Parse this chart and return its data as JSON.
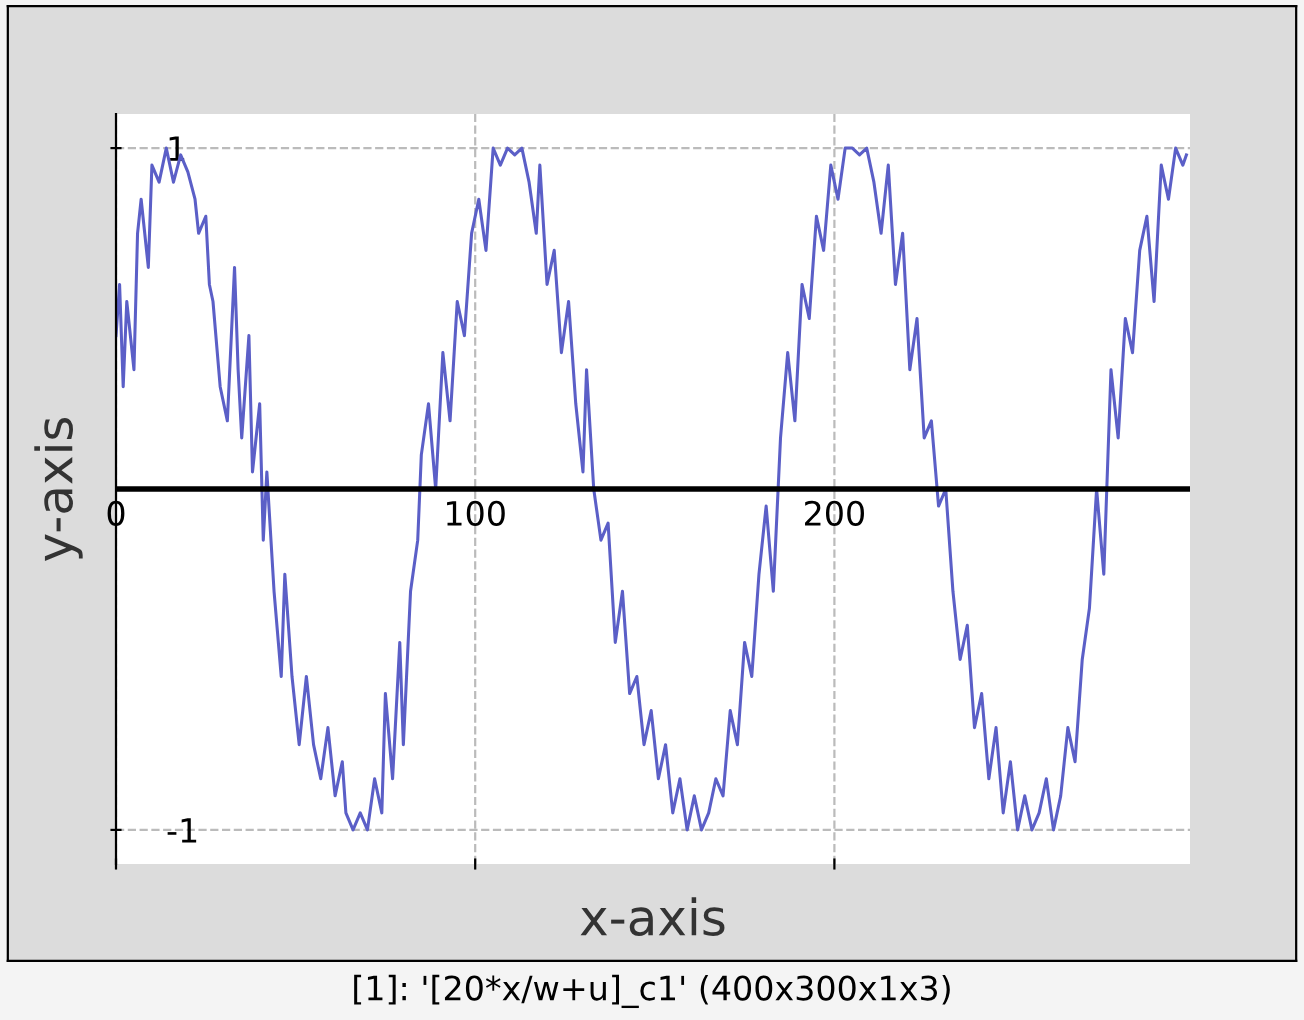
{
  "chart_data": {
    "type": "line",
    "xlabel": "x-axis",
    "ylabel": "y-axis",
    "annotations": [
      "[1]: '[20*x/w+u]_c1' (400x300x1x3)"
    ],
    "x": [
      0,
      1,
      2,
      3,
      5,
      6,
      7,
      9,
      10,
      12,
      14,
      16,
      18,
      20,
      22,
      23,
      25,
      26,
      27,
      29,
      31,
      33,
      34,
      35,
      37,
      38,
      40,
      41,
      42,
      44,
      46,
      47,
      49,
      51,
      53,
      55,
      57,
      59,
      61,
      63,
      64,
      66,
      68,
      70,
      72,
      74,
      75,
      77,
      79,
      80,
      82,
      84,
      85,
      87,
      89,
      91,
      93,
      95,
      97,
      99,
      101,
      103,
      105,
      107,
      109,
      111,
      113,
      115,
      117,
      118,
      120,
      122,
      124,
      126,
      128,
      130,
      131,
      133,
      135,
      137,
      139,
      141,
      143,
      145,
      147,
      149,
      151,
      153,
      155,
      157,
      159,
      161,
      163,
      165,
      167,
      169,
      171,
      173,
      175,
      177,
      179,
      181,
      183,
      185,
      187,
      189,
      191,
      193,
      195,
      197,
      199,
      201,
      203,
      205,
      207,
      209,
      211,
      213,
      215,
      217,
      219,
      221,
      223,
      225,
      227,
      229,
      231,
      233,
      235,
      237,
      239,
      241,
      243,
      245,
      247,
      249,
      251,
      253,
      255,
      257,
      259,
      261,
      263,
      265,
      267,
      269,
      271,
      273,
      275,
      277,
      279,
      281,
      283,
      285,
      287,
      289,
      291,
      293,
      295,
      297,
      298
    ],
    "series": [
      {
        "color": "#5b5fc7",
        "values": [
          0.45,
          0.6,
          0.3,
          0.55,
          0.35,
          0.75,
          0.85,
          0.65,
          0.95,
          0.9,
          1.0,
          0.9,
          0.98,
          0.93,
          0.85,
          0.75,
          0.8,
          0.6,
          0.55,
          0.3,
          0.2,
          0.65,
          0.35,
          0.15,
          0.45,
          0.05,
          0.25,
          -0.15,
          0.05,
          -0.3,
          -0.55,
          -0.25,
          -0.55,
          -0.75,
          -0.55,
          -0.75,
          -0.85,
          -0.7,
          -0.9,
          -0.8,
          -0.95,
          -1.0,
          -0.95,
          -1.0,
          -0.85,
          -0.95,
          -0.6,
          -0.85,
          -0.45,
          -0.75,
          -0.3,
          -0.15,
          0.1,
          0.25,
          0.0,
          0.4,
          0.2,
          0.55,
          0.45,
          0.75,
          0.85,
          0.7,
          1.0,
          0.95,
          1.0,
          0.98,
          1.0,
          0.9,
          0.75,
          0.95,
          0.6,
          0.7,
          0.4,
          0.55,
          0.25,
          0.05,
          0.35,
          0.0,
          -0.15,
          -0.1,
          -0.45,
          -0.3,
          -0.6,
          -0.55,
          -0.75,
          -0.65,
          -0.85,
          -0.75,
          -0.95,
          -0.85,
          -1.0,
          -0.9,
          -1.0,
          -0.95,
          -0.85,
          -0.9,
          -0.65,
          -0.75,
          -0.45,
          -0.55,
          -0.25,
          -0.05,
          -0.3,
          0.15,
          0.4,
          0.2,
          0.6,
          0.5,
          0.8,
          0.7,
          0.95,
          0.85,
          1.0,
          1.0,
          0.98,
          1.0,
          0.9,
          0.75,
          0.95,
          0.6,
          0.75,
          0.35,
          0.5,
          0.15,
          0.2,
          -0.05,
          0.0,
          -0.3,
          -0.5,
          -0.4,
          -0.7,
          -0.6,
          -0.85,
          -0.7,
          -0.95,
          -0.8,
          -1.0,
          -0.9,
          -1.0,
          -0.95,
          -0.85,
          -1.0,
          -0.9,
          -0.7,
          -0.8,
          -0.5,
          -0.35,
          0.0,
          -0.25,
          0.35,
          0.15,
          0.5,
          0.4,
          0.7,
          0.8,
          0.55,
          0.95,
          0.85,
          1.0,
          0.95,
          0.98
        ]
      }
    ],
    "xlim": [
      0,
      299
    ],
    "ylim": [
      -1.1,
      1.1
    ],
    "xticks": [
      0,
      100,
      200
    ],
    "yticks": [
      -1,
      1
    ],
    "grid": true,
    "marker": "none",
    "line_style": "solid",
    "legend": false
  }
}
